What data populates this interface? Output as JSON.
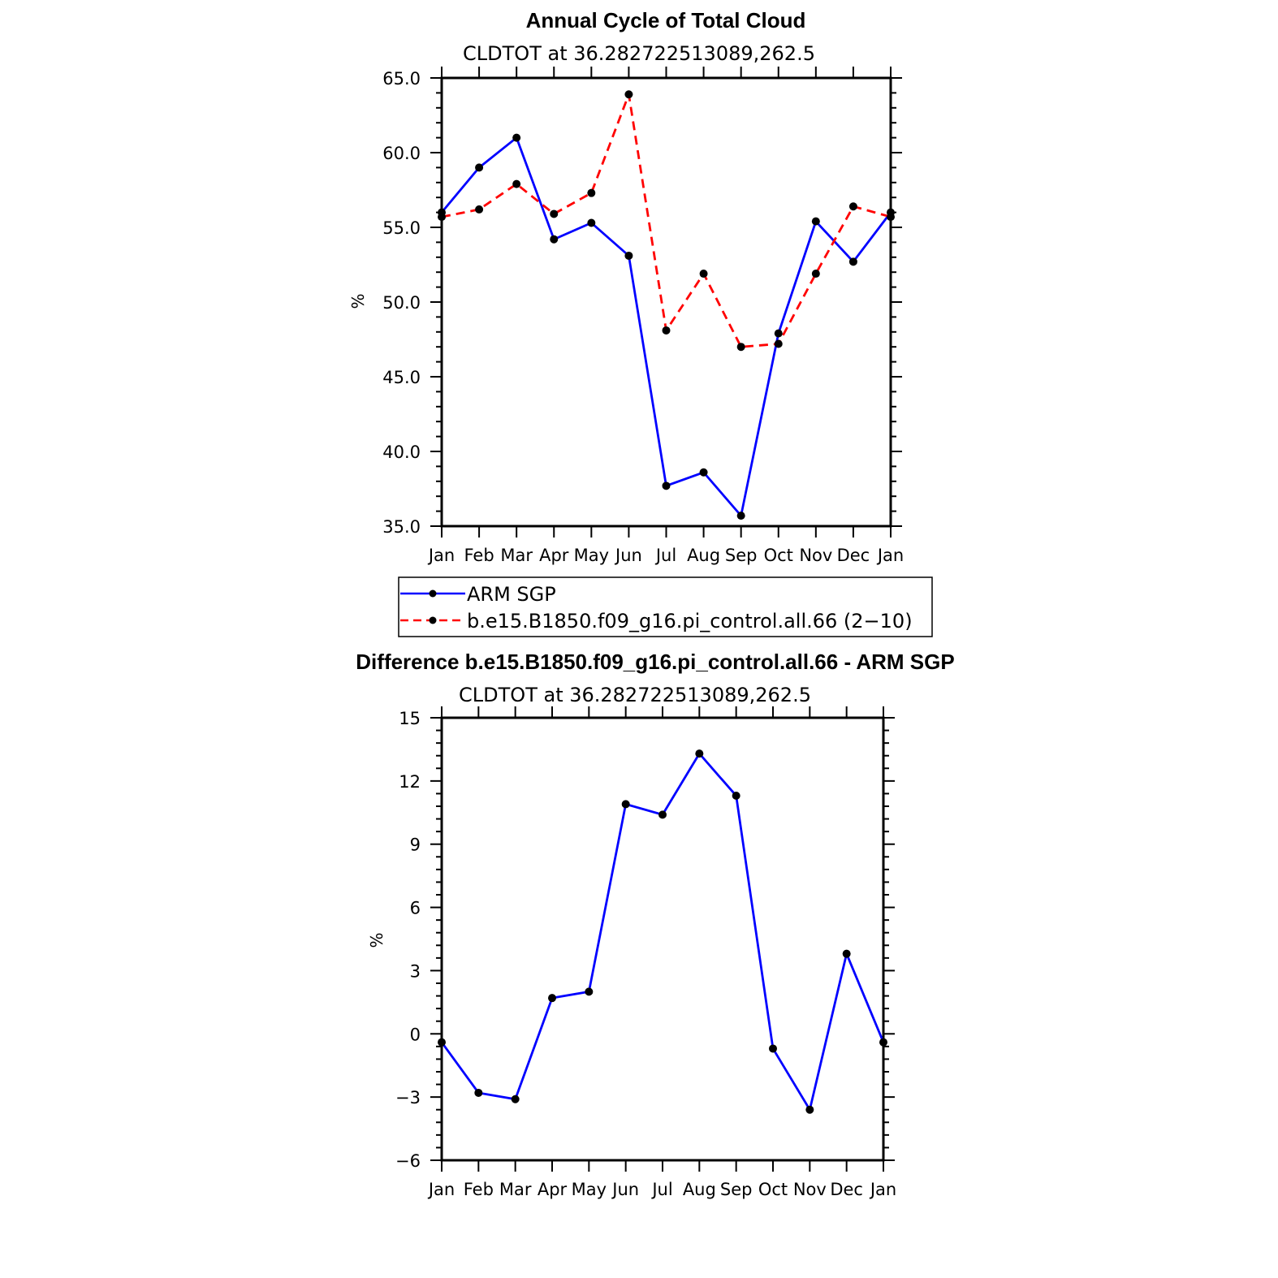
{
  "chart_data": [
    {
      "type": "line",
      "title": "Annual Cycle of Total Cloud",
      "subtitle": "CLDTOT at 36.282722513089,262.5",
      "ylabel": "%",
      "xlabel": "",
      "categories": [
        "Jan",
        "Feb",
        "Mar",
        "Apr",
        "May",
        "Jun",
        "Jul",
        "Aug",
        "Sep",
        "Oct",
        "Nov",
        "Dec",
        "Jan"
      ],
      "ylim": [
        35,
        65
      ],
      "yticks": [
        "35.0",
        "40.0",
        "45.0",
        "50.0",
        "55.0",
        "60.0",
        "65.0"
      ],
      "series": [
        {
          "name": "ARM SGP",
          "color": "#0000ff",
          "dash": "solid",
          "values": [
            56.0,
            59.0,
            61.0,
            54.2,
            55.3,
            53.1,
            37.7,
            38.6,
            35.7,
            47.9,
            55.4,
            52.7,
            56.0
          ]
        },
        {
          "name": "b.e15.B1850.f09_g16.pi_control.all.66 (2−10)",
          "color": "#ff0000",
          "dash": "dashed",
          "values": [
            55.7,
            56.2,
            57.9,
            55.9,
            57.3,
            63.9,
            48.1,
            51.9,
            47.0,
            47.2,
            51.9,
            56.4,
            55.7
          ]
        }
      ],
      "legend": [
        "ARM SGP",
        "b.e15.B1850.f09_g16.pi_control.all.66 (2−10)"
      ]
    },
    {
      "type": "line",
      "title": "Difference b.e15.B1850.f09_g16.pi_control.all.66 - ARM SGP",
      "subtitle": "CLDTOT at 36.282722513089,262.5",
      "ylabel": "%",
      "xlabel": "",
      "categories": [
        "Jan",
        "Feb",
        "Mar",
        "Apr",
        "May",
        "Jun",
        "Jul",
        "Aug",
        "Sep",
        "Oct",
        "Nov",
        "Dec",
        "Jan"
      ],
      "ylim": [
        -6,
        15
      ],
      "yticks": [
        "−6",
        "−3",
        "0",
        "3",
        "6",
        "9",
        "12",
        "15"
      ],
      "series": [
        {
          "name": "Difference",
          "color": "#0000ff",
          "dash": "solid",
          "values": [
            -0.4,
            -2.8,
            -3.1,
            1.7,
            2.0,
            10.9,
            10.4,
            13.3,
            11.3,
            -0.7,
            -3.6,
            3.8,
            -0.4
          ]
        }
      ]
    }
  ]
}
